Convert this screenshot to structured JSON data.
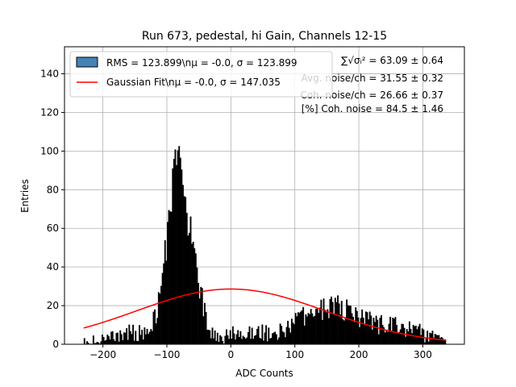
{
  "chart_data": {
    "type": "bar",
    "title": "Run 673, pedestal, hi Gain, Channels 12-15",
    "xlabel": "ADC Counts",
    "ylabel": "Entries",
    "xlim": [
      -260,
      365
    ],
    "ylim": [
      0,
      154
    ],
    "xticks": [
      -200,
      -100,
      0,
      100,
      200,
      300
    ],
    "yticks": [
      0,
      20,
      40,
      60,
      80,
      100,
      120,
      140
    ],
    "grid": true,
    "legend_position": "top-left",
    "colors": {
      "histogram_fill": "#000000",
      "fit_line": "#ff0000",
      "legend_patch": "#4682b4"
    },
    "legend": [
      {
        "label": "RMS = 123.899\\nμ = -0.0, σ = 123.899"
      },
      {
        "label": "Gaussian Fit\\nμ = -0.0, σ = 147.035"
      }
    ],
    "annotations": [
      "∑√σᵢ² = 63.09 ± 0.64",
      "Avg. noise/ch = 31.55 ± 0.32",
      "Coh. noise/ch = 26.66 ± 0.37",
      "[%] Coh. noise = 84.5 ± 1.46"
    ],
    "histogram": {
      "bin_width": 2,
      "x_range": [
        -230,
        336
      ],
      "components": [
        {
          "kind": "gauss",
          "mean": -83,
          "sigma": 17,
          "amplitude": 88
        },
        {
          "kind": "gauss",
          "mean": -52,
          "sigma": 12,
          "amplitude": 18
        },
        {
          "kind": "gauss",
          "mean": 155,
          "sigma": 50,
          "amplitude": 19
        },
        {
          "kind": "gauss",
          "mean": 20,
          "sigma": 32,
          "amplitude": 6
        },
        {
          "kind": "gauss",
          "mean": -150,
          "sigma": 45,
          "amplitude": 6
        },
        {
          "kind": "gauss",
          "mean": 270,
          "sigma": 40,
          "amplitude": 7
        }
      ]
    },
    "fit": {
      "mean": -0.0,
      "sigma": 147.035,
      "amplitude": 28.6,
      "x_range": [
        -230,
        336
      ]
    }
  }
}
